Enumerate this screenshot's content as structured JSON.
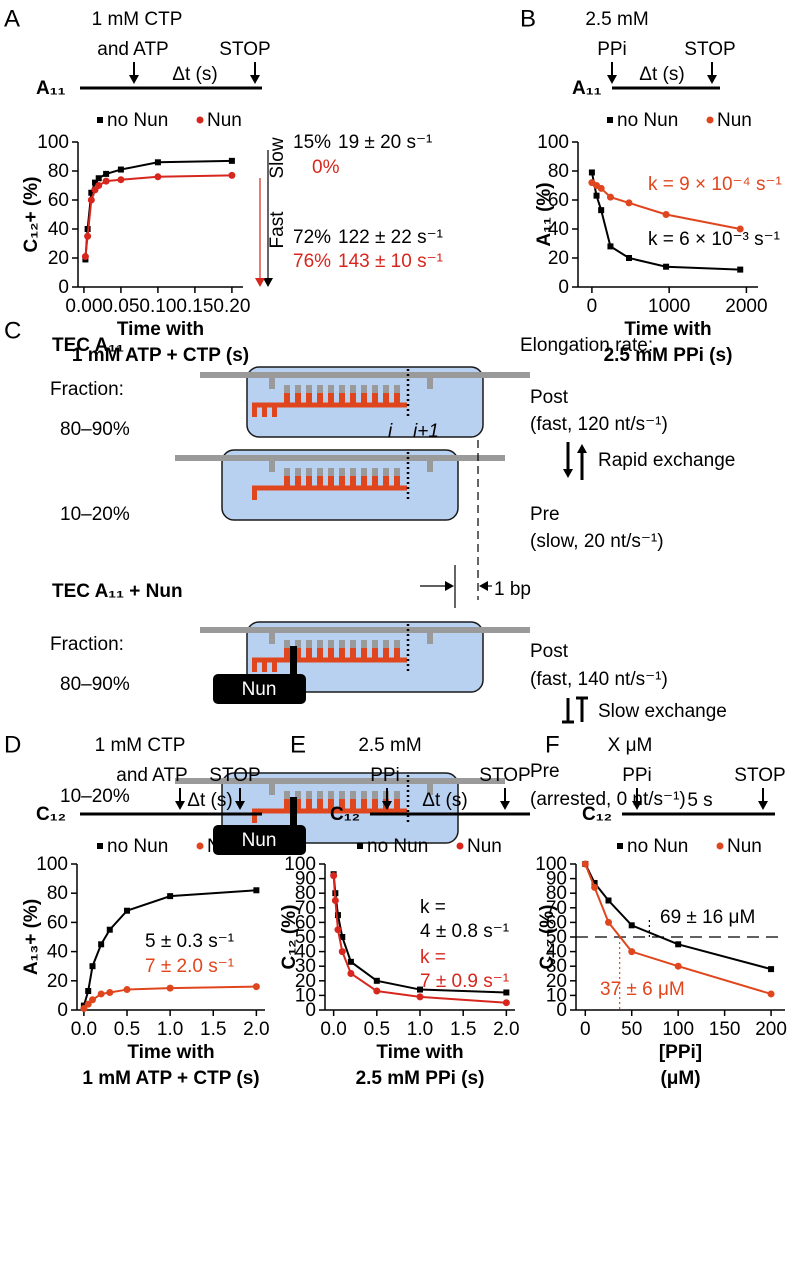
{
  "chart_data": [
    {
      "type": "line",
      "panel": "A",
      "protocol": {
        "reagent": [
          "1 mM CTP",
          "and ATP"
        ],
        "interval": "Δt (s)",
        "stop": "STOP",
        "template": "A₁₁"
      },
      "x": [
        0.002,
        0.005,
        0.01,
        0.015,
        0.02,
        0.03,
        0.05,
        0.1,
        0.2
      ],
      "series": [
        {
          "name": "no Nun",
          "color": "#000000",
          "marker": "square",
          "values": [
            19,
            40,
            65,
            72,
            75,
            78,
            81,
            86,
            87
          ]
        },
        {
          "name": "Nun",
          "color": "#d7261e",
          "marker": "circle",
          "values": [
            21,
            35,
            60,
            67,
            70,
            73,
            74,
            76,
            77
          ]
        }
      ],
      "xlim": [
        -0.008,
        0.215
      ],
      "xticks": [
        {
          "value": 0,
          "label": "0.00"
        },
        {
          "value": 0.05,
          "label": "0.05"
        },
        {
          "value": 0.1,
          "label": "0.10"
        },
        {
          "value": 0.15,
          "label": "0.15"
        },
        {
          "value": 0.2,
          "label": "0.20"
        }
      ],
      "ylim": [
        0,
        100
      ],
      "yticks": [
        0,
        20,
        40,
        60,
        80,
        100
      ],
      "y_label": "C₁₂+ (%)",
      "x_label": [
        "Time with",
        "1 mM ATP + CTP (s)"
      ],
      "annotations": [
        {
          "text": "15%",
          "color": "#000000"
        },
        {
          "text": "19 ± 20 s⁻¹",
          "color": "#000000"
        },
        {
          "text": "0%",
          "color": "#d7261e"
        },
        {
          "text": "72%",
          "color": "#000000"
        },
        {
          "text": "122 ± 22 s⁻¹",
          "color": "#000000"
        },
        {
          "text": "76%",
          "color": "#d7261e"
        },
        {
          "text": "143 ± 10 s⁻¹",
          "color": "#d7261e"
        },
        {
          "text": "Slow",
          "color": "#000000"
        },
        {
          "text": "Fast",
          "color": "#000000"
        }
      ]
    },
    {
      "type": "line",
      "panel": "B",
      "protocol": {
        "reagent": [
          "2.5 mM",
          "PPi"
        ],
        "interval": "Δt (s)",
        "stop": "STOP",
        "template": "A₁₁"
      },
      "x": [
        0,
        60,
        120,
        240,
        480,
        960,
        1920
      ],
      "series": [
        {
          "name": "no Nun",
          "color": "#000000",
          "marker": "square",
          "values": [
            79,
            63,
            53,
            28,
            20,
            14,
            12
          ]
        },
        {
          "name": "Nun",
          "color": "#e0461e",
          "marker": "circle",
          "values": [
            72,
            70,
            68,
            62,
            58,
            50,
            40
          ]
        }
      ],
      "xlim": [
        -180,
        2150
      ],
      "xticks": [
        0,
        1000,
        2000
      ],
      "ylim": [
        0,
        100
      ],
      "yticks": [
        0,
        20,
        40,
        60,
        80,
        100
      ],
      "y_label": "A₁₁ (%)",
      "x_label": [
        "Time with",
        "2.5 mM PPi (s)"
      ],
      "annotations": [
        {
          "text": "k = 9 × 10⁻⁴ s⁻¹",
          "color": "#e0461e"
        },
        {
          "text": "k = 6 × 10⁻³ s⁻¹",
          "color": "#000000"
        }
      ]
    },
    {
      "type": "line",
      "panel": "D",
      "protocol": {
        "reagent": [
          "1 mM CTP",
          "and ATP"
        ],
        "interval": "Δt (s)",
        "stop": "STOP",
        "template": "C₁₂"
      },
      "x": [
        0,
        0.05,
        0.1,
        0.2,
        0.3,
        0.5,
        1,
        2
      ],
      "series": [
        {
          "name": "no Nun",
          "color": "#000000",
          "marker": "square",
          "values": [
            3,
            13,
            30,
            45,
            55,
            68,
            78,
            82
          ]
        },
        {
          "name": "Nun",
          "color": "#e0461e",
          "marker": "circle",
          "values": [
            1,
            4,
            7,
            11,
            12,
            14,
            15,
            16
          ]
        }
      ],
      "xlim": [
        -0.08,
        2.1
      ],
      "xticks": [
        {
          "value": 0,
          "label": "0.0"
        },
        {
          "value": 0.5,
          "label": "0.5"
        },
        {
          "value": 1,
          "label": "1.0"
        },
        {
          "value": 1.5,
          "label": "1.5"
        },
        {
          "value": 2,
          "label": "2.0"
        }
      ],
      "ylim": [
        0,
        100
      ],
      "yticks": [
        0,
        20,
        40,
        60,
        80,
        100
      ],
      "y_label": "A₁₃+ (%)",
      "x_label": [
        "Time with",
        "1 mM ATP + CTP (s)"
      ],
      "annotations": [
        {
          "text": "5 ± 0.3 s⁻¹",
          "color": "#000000"
        },
        {
          "text": "7 ± 2.0 s⁻¹",
          "color": "#e0461e"
        }
      ]
    },
    {
      "type": "line",
      "panel": "E",
      "protocol": {
        "reagent": [
          "2.5 mM",
          "PPi"
        ],
        "interval": "Δt (s)",
        "stop": "STOP",
        "template": "C₁₂"
      },
      "x": [
        0,
        0.02,
        0.05,
        0.1,
        0.2,
        0.5,
        1,
        2
      ],
      "series": [
        {
          "name": "no Nun",
          "color": "#000000",
          "marker": "square",
          "values": [
            93,
            80,
            65,
            50,
            33,
            20,
            14,
            12
          ]
        },
        {
          "name": "Nun",
          "color": "#d7261e",
          "marker": "circle",
          "values": [
            92,
            75,
            55,
            40,
            25,
            13,
            9,
            5
          ]
        }
      ],
      "xlim": [
        -0.1,
        2.1
      ],
      "xticks": [
        {
          "value": 0,
          "label": "0.0"
        },
        {
          "value": 0.5,
          "label": "0.5"
        },
        {
          "value": 1,
          "label": "1.0"
        },
        {
          "value": 1.5,
          "label": "1.5"
        },
        {
          "value": 2,
          "label": "2.0"
        }
      ],
      "ylim": [
        0,
        100
      ],
      "yticks": [
        0,
        10,
        20,
        30,
        40,
        50,
        60,
        70,
        80,
        90,
        100
      ],
      "y_label": "C₁₂ (%)",
      "x_label": [
        "Time with",
        "2.5 mM PPi (s)"
      ],
      "annotations": [
        {
          "text": "k =",
          "color": "#000000"
        },
        {
          "text": "4 ± 0.8 s⁻¹",
          "color": "#000000"
        },
        {
          "text": "k =",
          "color": "#d7261e"
        },
        {
          "text": "7 ± 0.9 s⁻¹",
          "color": "#d7261e"
        }
      ]
    },
    {
      "type": "line",
      "panel": "F",
      "protocol": {
        "reagent": [
          "X μM",
          "PPi"
        ],
        "interval": "5 s",
        "stop": "STOP",
        "template": "C₁₂"
      },
      "x": [
        0,
        10,
        25,
        50,
        100,
        200
      ],
      "series": [
        {
          "name": "no Nun",
          "color": "#000000",
          "marker": "square",
          "values": [
            100,
            87,
            75,
            58,
            45,
            28
          ]
        },
        {
          "name": "Nun",
          "color": "#e0461e",
          "marker": "circle",
          "values": [
            100,
            84,
            60,
            40,
            30,
            11
          ]
        }
      ],
      "xlim": [
        -10,
        215
      ],
      "xticks": [
        0,
        50,
        100,
        150,
        200
      ],
      "ylim": [
        0,
        100
      ],
      "yticks": [
        0,
        10,
        20,
        30,
        40,
        50,
        60,
        70,
        80,
        90,
        100
      ],
      "y_label": "C₁₂ (%)",
      "x_label": [
        "[PPi]",
        "(μM)"
      ],
      "hline": 50,
      "vlines": [
        69,
        37
      ],
      "annotations": [
        {
          "text": "69 ± 16 μM",
          "color": "#000000"
        },
        {
          "text": "37 ± 6 μM",
          "color": "#e0461e"
        }
      ]
    }
  ],
  "diagram": {
    "panel": "C",
    "rate_header": "Elongation rate:",
    "step": "1 bp",
    "positions": [
      "i",
      "i+1"
    ],
    "factor": "Nun",
    "sections": [
      {
        "title": "TEC A₁₁",
        "exchange": "Rapid exchange",
        "states": [
          {
            "fraction_label": "Fraction:",
            "fraction": "80–90%",
            "state": "Post",
            "rate": "(fast, 120 nt/s⁻¹)"
          },
          {
            "fraction": "10–20%",
            "state": "Pre",
            "rate": "(slow, 20 nt/s⁻¹)"
          }
        ]
      },
      {
        "title": "TEC A₁₁ + Nun",
        "exchange": "Slow exchange",
        "states": [
          {
            "fraction_label": "Fraction:",
            "fraction": "80–90%",
            "state": "Post",
            "rate": "(fast, 140 nt/s⁻¹)"
          },
          {
            "fraction": "10–20%",
            "state": "Pre",
            "rate": "(arrested, 0 nt/s⁻¹)"
          }
        ]
      }
    ]
  }
}
